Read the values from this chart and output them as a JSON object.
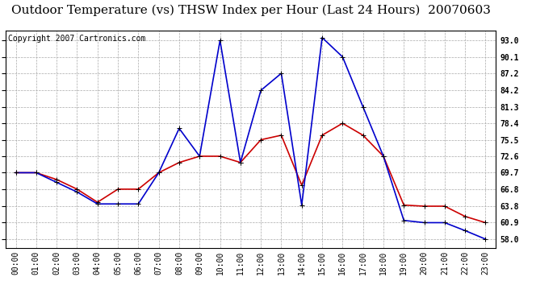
{
  "title": "Outdoor Temperature (vs) THSW Index per Hour (Last 24 Hours)  20070603",
  "copyright_text": "Copyright 2007 Cartronics.com",
  "hours": [
    "00:00",
    "01:00",
    "02:00",
    "03:00",
    "04:00",
    "05:00",
    "06:00",
    "07:00",
    "08:00",
    "09:00",
    "10:00",
    "11:00",
    "12:00",
    "13:00",
    "14:00",
    "15:00",
    "16:00",
    "17:00",
    "18:00",
    "19:00",
    "20:00",
    "21:00",
    "22:00",
    "23:00"
  ],
  "temp_red": [
    69.7,
    69.7,
    68.5,
    66.8,
    64.5,
    66.8,
    66.8,
    69.7,
    71.5,
    72.6,
    72.6,
    71.5,
    75.5,
    76.3,
    67.5,
    76.3,
    78.4,
    76.3,
    72.6,
    64.0,
    63.8,
    63.8,
    62.0,
    60.9
  ],
  "thsw_blue": [
    69.7,
    69.7,
    68.0,
    66.3,
    64.2,
    64.2,
    64.2,
    69.7,
    77.5,
    72.6,
    93.0,
    71.5,
    84.2,
    87.2,
    64.0,
    93.5,
    90.1,
    81.3,
    72.6,
    61.3,
    60.9,
    60.9,
    59.5,
    58.0
  ],
  "red_color": "#cc0000",
  "blue_color": "#0000cc",
  "bg_color": "#ffffff",
  "grid_color": "#aaaaaa",
  "yticks": [
    58.0,
    60.9,
    63.8,
    66.8,
    69.7,
    72.6,
    75.5,
    78.4,
    81.3,
    84.2,
    87.2,
    90.1,
    93.0
  ],
  "ymin": 56.5,
  "ymax": 94.8,
  "title_fontsize": 11,
  "copyright_fontsize": 7,
  "tick_fontsize": 7,
  "marker": "+",
  "marker_size": 5,
  "line_width": 1.2
}
